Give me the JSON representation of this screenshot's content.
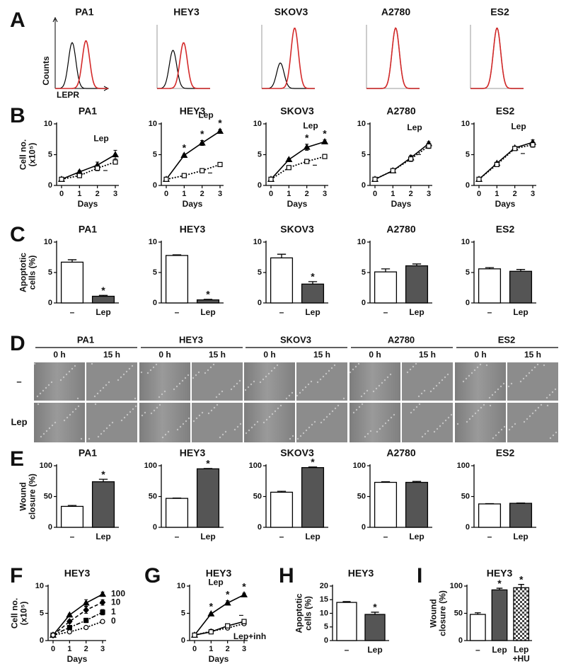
{
  "panel_labels": [
    "A",
    "B",
    "C",
    "D",
    "E",
    "F",
    "G",
    "H",
    "I"
  ],
  "wound_images": {
    "cell_lines": [
      "PA1",
      "HEY3",
      "SKOV3",
      "A2780",
      "ES2"
    ],
    "times": [
      "0 h",
      "15 h"
    ],
    "rows": [
      "–",
      "Lep"
    ]
  },
  "chart_data": [
    {
      "type": "flow",
      "title": "PA1",
      "ylabel": "Counts",
      "xlabel": "LEPR",
      "colors": [
        "#000000",
        "#d42a2a"
      ]
    },
    {
      "type": "flow",
      "title": "HEY3",
      "colors": [
        "#000000",
        "#d42a2a"
      ]
    },
    {
      "type": "flow",
      "title": "SKOV3",
      "colors": [
        "#000000",
        "#d42a2a"
      ]
    },
    {
      "type": "flow",
      "title": "A2780",
      "colors": [
        "#000000",
        "#d42a2a"
      ]
    },
    {
      "type": "flow",
      "title": "ES2",
      "colors": [
        "#000000",
        "#d42a2a"
      ]
    },
    {
      "type": "line",
      "title": "PA1",
      "ylabel": "Cell no.\n(x10⁵)",
      "xlabel": "Days",
      "x": [
        0,
        1,
        2,
        3
      ],
      "xlim": [
        0,
        3
      ],
      "xticks": [
        0,
        1,
        2,
        3
      ],
      "ylim": [
        0,
        10
      ],
      "yticks": [
        0,
        5,
        10
      ],
      "series": [
        {
          "name": "Lep",
          "color": "#000000",
          "style": "solid",
          "marker": "triangle",
          "values": [
            1,
            2.2,
            3.3,
            5.0
          ],
          "errors": [
            0.1,
            0.2,
            0.5,
            0.7
          ]
        },
        {
          "name": "–",
          "color": "#000000",
          "style": "dotted",
          "marker": "square",
          "values": [
            1,
            1.6,
            2.8,
            3.8
          ],
          "errors": [
            0.1,
            0.2,
            0.4,
            0.3
          ]
        }
      ]
    },
    {
      "type": "line",
      "title": "HEY3",
      "xlabel": "Days",
      "x": [
        0,
        1,
        2,
        3
      ],
      "xlim": [
        0,
        3
      ],
      "xticks": [
        0,
        1,
        2,
        3
      ],
      "ylim": [
        0,
        10
      ],
      "yticks": [
        0,
        5,
        10
      ],
      "series": [
        {
          "name": "Lep",
          "color": "#000000",
          "style": "solid",
          "marker": "triangle",
          "values": [
            1,
            4.9,
            6.9,
            8.8
          ],
          "errors": [
            0.1,
            0.2,
            0.4,
            0.3
          ],
          "significance": [
            null,
            "*",
            "*",
            "*"
          ]
        },
        {
          "name": "–",
          "color": "#000000",
          "style": "dotted",
          "marker": "square",
          "values": [
            1,
            1.6,
            2.4,
            3.4
          ],
          "errors": [
            0.1,
            0.2,
            0.2,
            0.2
          ]
        }
      ]
    },
    {
      "type": "line",
      "title": "SKOV3",
      "xlabel": "Days",
      "x": [
        0,
        1,
        2,
        3
      ],
      "xlim": [
        0,
        3
      ],
      "xticks": [
        0,
        1,
        2,
        3
      ],
      "ylim": [
        0,
        10
      ],
      "yticks": [
        0,
        5,
        10
      ],
      "series": [
        {
          "name": "Lep",
          "color": "#000000",
          "style": "solid",
          "marker": "triangle",
          "values": [
            1,
            4.2,
            6.2,
            7.1
          ],
          "errors": [
            0.1,
            0.2,
            0.5,
            0.3
          ],
          "significance": [
            null,
            null,
            "*",
            "*"
          ]
        },
        {
          "name": "–",
          "color": "#000000",
          "style": "dotted",
          "marker": "square",
          "values": [
            1,
            2.9,
            3.9,
            4.7
          ],
          "errors": [
            0.1,
            0.2,
            0.2,
            0.2
          ]
        }
      ]
    },
    {
      "type": "line",
      "title": "A2780",
      "xlabel": "Days",
      "x": [
        0,
        1,
        2,
        3
      ],
      "xlim": [
        0,
        3
      ],
      "xticks": [
        0,
        1,
        2,
        3
      ],
      "ylim": [
        0,
        10
      ],
      "yticks": [
        0,
        5,
        10
      ],
      "series": [
        {
          "name": "Lep",
          "color": "#000000",
          "style": "solid",
          "marker": "triangle",
          "values": [
            1,
            2.4,
            4.5,
            6.8
          ],
          "errors": [
            0.1,
            0.3,
            0.4,
            0.3
          ]
        },
        {
          "name": "–",
          "color": "#000000",
          "style": "dotted",
          "marker": "square",
          "values": [
            1,
            2.4,
            4.3,
            6.4
          ],
          "errors": [
            0.1,
            0.3,
            0.4,
            0.4
          ]
        }
      ]
    },
    {
      "type": "line",
      "title": "ES2",
      "xlabel": "Days",
      "x": [
        0,
        1,
        2,
        3
      ],
      "xlim": [
        0,
        3
      ],
      "xticks": [
        0,
        1,
        2,
        3
      ],
      "ylim": [
        0,
        10
      ],
      "yticks": [
        0,
        5,
        10
      ],
      "series": [
        {
          "name": "Lep",
          "color": "#000000",
          "style": "solid",
          "marker": "triangle",
          "values": [
            1,
            3.6,
            6.1,
            7.0
          ],
          "errors": [
            0.1,
            0.2,
            0.2,
            0.4
          ]
        },
        {
          "name": "–",
          "color": "#000000",
          "style": "dotted",
          "marker": "square",
          "values": [
            1,
            3.4,
            6.0,
            6.6
          ],
          "errors": [
            0.1,
            0.2,
            0.2,
            0.4
          ]
        }
      ]
    },
    {
      "type": "bar",
      "title": "PA1",
      "ylabel": "Apoptotic\ncells (%)",
      "categories": [
        "–",
        "Lep"
      ],
      "values": [
        6.7,
        1.1
      ],
      "errors": [
        0.4,
        0.15
      ],
      "colors": [
        "#ffffff",
        "#555555"
      ],
      "significance": [
        null,
        "*"
      ],
      "ylim": [
        0,
        10
      ],
      "yticks": [
        0,
        5,
        10
      ]
    },
    {
      "type": "bar",
      "title": "HEY3",
      "categories": [
        "–",
        "Lep"
      ],
      "values": [
        7.8,
        0.5
      ],
      "errors": [
        0.1,
        0.1
      ],
      "colors": [
        "#ffffff",
        "#555555"
      ],
      "significance": [
        null,
        "*"
      ],
      "ylim": [
        0,
        10
      ],
      "yticks": [
        0,
        5,
        10
      ]
    },
    {
      "type": "bar",
      "title": "SKOV3",
      "categories": [
        "–",
        "Lep"
      ],
      "values": [
        7.4,
        3.1
      ],
      "errors": [
        0.6,
        0.4
      ],
      "colors": [
        "#ffffff",
        "#555555"
      ],
      "significance": [
        null,
        "*"
      ],
      "ylim": [
        0,
        10
      ],
      "yticks": [
        0,
        5,
        10
      ]
    },
    {
      "type": "bar",
      "title": "A2780",
      "categories": [
        "–",
        "Lep"
      ],
      "values": [
        5.1,
        6.1
      ],
      "errors": [
        0.5,
        0.3
      ],
      "colors": [
        "#ffffff",
        "#555555"
      ],
      "ylim": [
        0,
        10
      ],
      "yticks": [
        0,
        5,
        10
      ]
    },
    {
      "type": "bar",
      "title": "ES2",
      "categories": [
        "–",
        "Lep"
      ],
      "values": [
        5.6,
        5.2
      ],
      "errors": [
        0.2,
        0.3
      ],
      "colors": [
        "#ffffff",
        "#555555"
      ],
      "ylim": [
        0,
        10
      ],
      "yticks": [
        0,
        5,
        10
      ]
    },
    {
      "type": "bar",
      "title": "PA1",
      "ylabel": "Wound\nclosure (%)",
      "categories": [
        "–",
        "Lep"
      ],
      "values": [
        34,
        74
      ],
      "errors": [
        1.5,
        4
      ],
      "colors": [
        "#ffffff",
        "#555555"
      ],
      "significance": [
        null,
        "*"
      ],
      "ylim": [
        0,
        100
      ],
      "yticks": [
        0,
        50,
        100
      ]
    },
    {
      "type": "bar",
      "title": "HEY3",
      "categories": [
        "–",
        "Lep"
      ],
      "values": [
        47,
        95
      ],
      "errors": [
        0.5,
        0.5
      ],
      "colors": [
        "#ffffff",
        "#555555"
      ],
      "significance": [
        null,
        "*"
      ],
      "ylim": [
        0,
        100
      ],
      "yticks": [
        0,
        50,
        100
      ]
    },
    {
      "type": "bar",
      "title": "SKOV3",
      "categories": [
        "–",
        "Lep"
      ],
      "values": [
        57,
        97
      ],
      "errors": [
        1.5,
        1
      ],
      "colors": [
        "#ffffff",
        "#555555"
      ],
      "significance": [
        null,
        "*"
      ],
      "ylim": [
        0,
        100
      ],
      "yticks": [
        0,
        50,
        100
      ]
    },
    {
      "type": "bar",
      "title": "A2780",
      "categories": [
        "–",
        "Lep"
      ],
      "values": [
        73,
        73
      ],
      "errors": [
        1,
        1.5
      ],
      "colors": [
        "#ffffff",
        "#555555"
      ],
      "ylim": [
        0,
        100
      ],
      "yticks": [
        0,
        50,
        100
      ]
    },
    {
      "type": "bar",
      "title": "ES2",
      "categories": [
        "–",
        "Lep"
      ],
      "values": [
        38,
        39
      ],
      "errors": [
        0.5,
        0.5
      ],
      "colors": [
        "#ffffff",
        "#555555"
      ],
      "ylim": [
        0,
        100
      ],
      "yticks": [
        0,
        50,
        100
      ]
    },
    {
      "type": "line",
      "title": "HEY3",
      "ylabel": "Cell no.\n(x10⁵)",
      "xlabel": "Days",
      "x": [
        0,
        1,
        2,
        3
      ],
      "xlim": [
        0,
        3
      ],
      "xticks": [
        0,
        1,
        2,
        3
      ],
      "ylim": [
        0,
        10
      ],
      "yticks": [
        0,
        5,
        10
      ],
      "series": [
        {
          "name": "100",
          "color": "#000000",
          "style": "solid",
          "marker": "triangle",
          "values": [
            1,
            4.7,
            6.9,
            8.5
          ],
          "errors": [
            0.1,
            0.2,
            0.6,
            0.4
          ]
        },
        {
          "name": "10",
          "color": "#000000",
          "style": "dashed",
          "marker": "diamond",
          "values": [
            1,
            3.5,
            5.6,
            7.0
          ],
          "errors": [
            0.1,
            0.3,
            0.6,
            0.5
          ]
        },
        {
          "name": "1",
          "color": "#000000",
          "style": "dashdot",
          "marker": "filledsquare",
          "values": [
            1,
            2.4,
            3.7,
            5.2
          ],
          "errors": [
            0.1,
            0.2,
            0.4,
            0.5
          ]
        },
        {
          "name": "0",
          "color": "#000000",
          "style": "dotted",
          "marker": "circle",
          "values": [
            1,
            1.6,
            2.4,
            3.5
          ],
          "errors": [
            0.1,
            0.2,
            0.2,
            0.2
          ]
        }
      ]
    },
    {
      "type": "line",
      "title": "HEY3",
      "xlabel": "Days",
      "x": [
        0,
        1,
        2,
        3
      ],
      "xlim": [
        0,
        3
      ],
      "xticks": [
        0,
        1,
        2,
        3
      ],
      "ylim": [
        0,
        10
      ],
      "yticks": [
        0,
        5,
        10
      ],
      "series": [
        {
          "name": "Lep",
          "color": "#000000",
          "style": "solid",
          "marker": "triangle",
          "values": [
            1,
            4.9,
            6.9,
            8.4
          ],
          "errors": [
            0.1,
            0.2,
            0.4,
            0.3
          ],
          "significance": [
            null,
            "*",
            "*",
            "*"
          ]
        },
        {
          "name": "–",
          "color": "#000000",
          "style": "dotted",
          "marker": "circle",
          "values": [
            1,
            1.7,
            2.3,
            3.1
          ],
          "errors": [
            0.1,
            0.2,
            0.2,
            0.3
          ]
        },
        {
          "name": "Lep+inh",
          "color": "#000000",
          "style": "solid",
          "marker": "square",
          "values": [
            1,
            1.6,
            2.7,
            3.5
          ],
          "errors": [
            0.1,
            0.2,
            0.2,
            0.4
          ]
        }
      ]
    },
    {
      "type": "bar",
      "title": "HEY3",
      "ylabel": "Apoptotic\ncells (%)",
      "categories": [
        "–",
        "Lep"
      ],
      "values": [
        14,
        9.6
      ],
      "errors": [
        0.3,
        0.8
      ],
      "colors": [
        "#ffffff",
        "#555555"
      ],
      "significance": [
        null,
        "*"
      ],
      "ylim": [
        0,
        20
      ],
      "yticks": [
        0,
        5,
        10,
        15,
        20
      ]
    },
    {
      "type": "bar",
      "title": "HEY3",
      "ylabel": "Wound\nclosure (%)",
      "categories": [
        "–",
        "Lep",
        "Lep\n+HU"
      ],
      "values": [
        48,
        93,
        97
      ],
      "errors": [
        3,
        3,
        6
      ],
      "colors": [
        "#ffffff",
        "#555555",
        "checker"
      ],
      "significance": [
        null,
        "*",
        "*"
      ],
      "ylim": [
        0,
        100
      ],
      "yticks": [
        0,
        50,
        100
      ]
    }
  ]
}
